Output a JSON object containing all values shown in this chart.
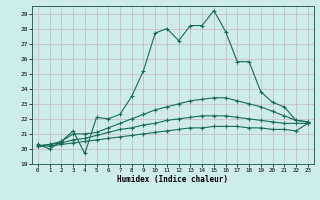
{
  "title": "",
  "xlabel": "Humidex (Indice chaleur)",
  "xlim": [
    -0.5,
    23.5
  ],
  "ylim": [
    19,
    29.5
  ],
  "yticks": [
    19,
    20,
    21,
    22,
    23,
    24,
    25,
    26,
    27,
    28,
    29
  ],
  "xticks": [
    0,
    1,
    2,
    3,
    4,
    5,
    6,
    7,
    8,
    9,
    10,
    11,
    12,
    13,
    14,
    15,
    16,
    17,
    18,
    19,
    20,
    21,
    22,
    23
  ],
  "bg_color": "#cdecea",
  "grid_color": "#c8b8be",
  "line_color": "#1a6b5a",
  "lines": [
    [
      20.3,
      20.0,
      20.5,
      21.2,
      19.7,
      22.1,
      22.0,
      22.3,
      23.5,
      25.2,
      27.7,
      28.0,
      27.2,
      28.2,
      28.2,
      29.2,
      27.8,
      25.8,
      25.8,
      23.8,
      23.1,
      22.8,
      21.9,
      21.8
    ],
    [
      20.2,
      20.3,
      20.5,
      21.0,
      21.0,
      21.1,
      21.4,
      21.7,
      22.0,
      22.3,
      22.6,
      22.8,
      23.0,
      23.2,
      23.3,
      23.4,
      23.4,
      23.2,
      23.0,
      22.8,
      22.5,
      22.2,
      21.9,
      21.8
    ],
    [
      20.2,
      20.3,
      20.4,
      20.6,
      20.7,
      20.9,
      21.1,
      21.3,
      21.4,
      21.6,
      21.7,
      21.9,
      22.0,
      22.1,
      22.2,
      22.2,
      22.2,
      22.1,
      22.0,
      21.9,
      21.8,
      21.7,
      21.7,
      21.7
    ],
    [
      20.2,
      20.2,
      20.3,
      20.4,
      20.5,
      20.6,
      20.7,
      20.8,
      20.9,
      21.0,
      21.1,
      21.2,
      21.3,
      21.4,
      21.4,
      21.5,
      21.5,
      21.5,
      21.4,
      21.4,
      21.3,
      21.3,
      21.2,
      21.7
    ]
  ]
}
